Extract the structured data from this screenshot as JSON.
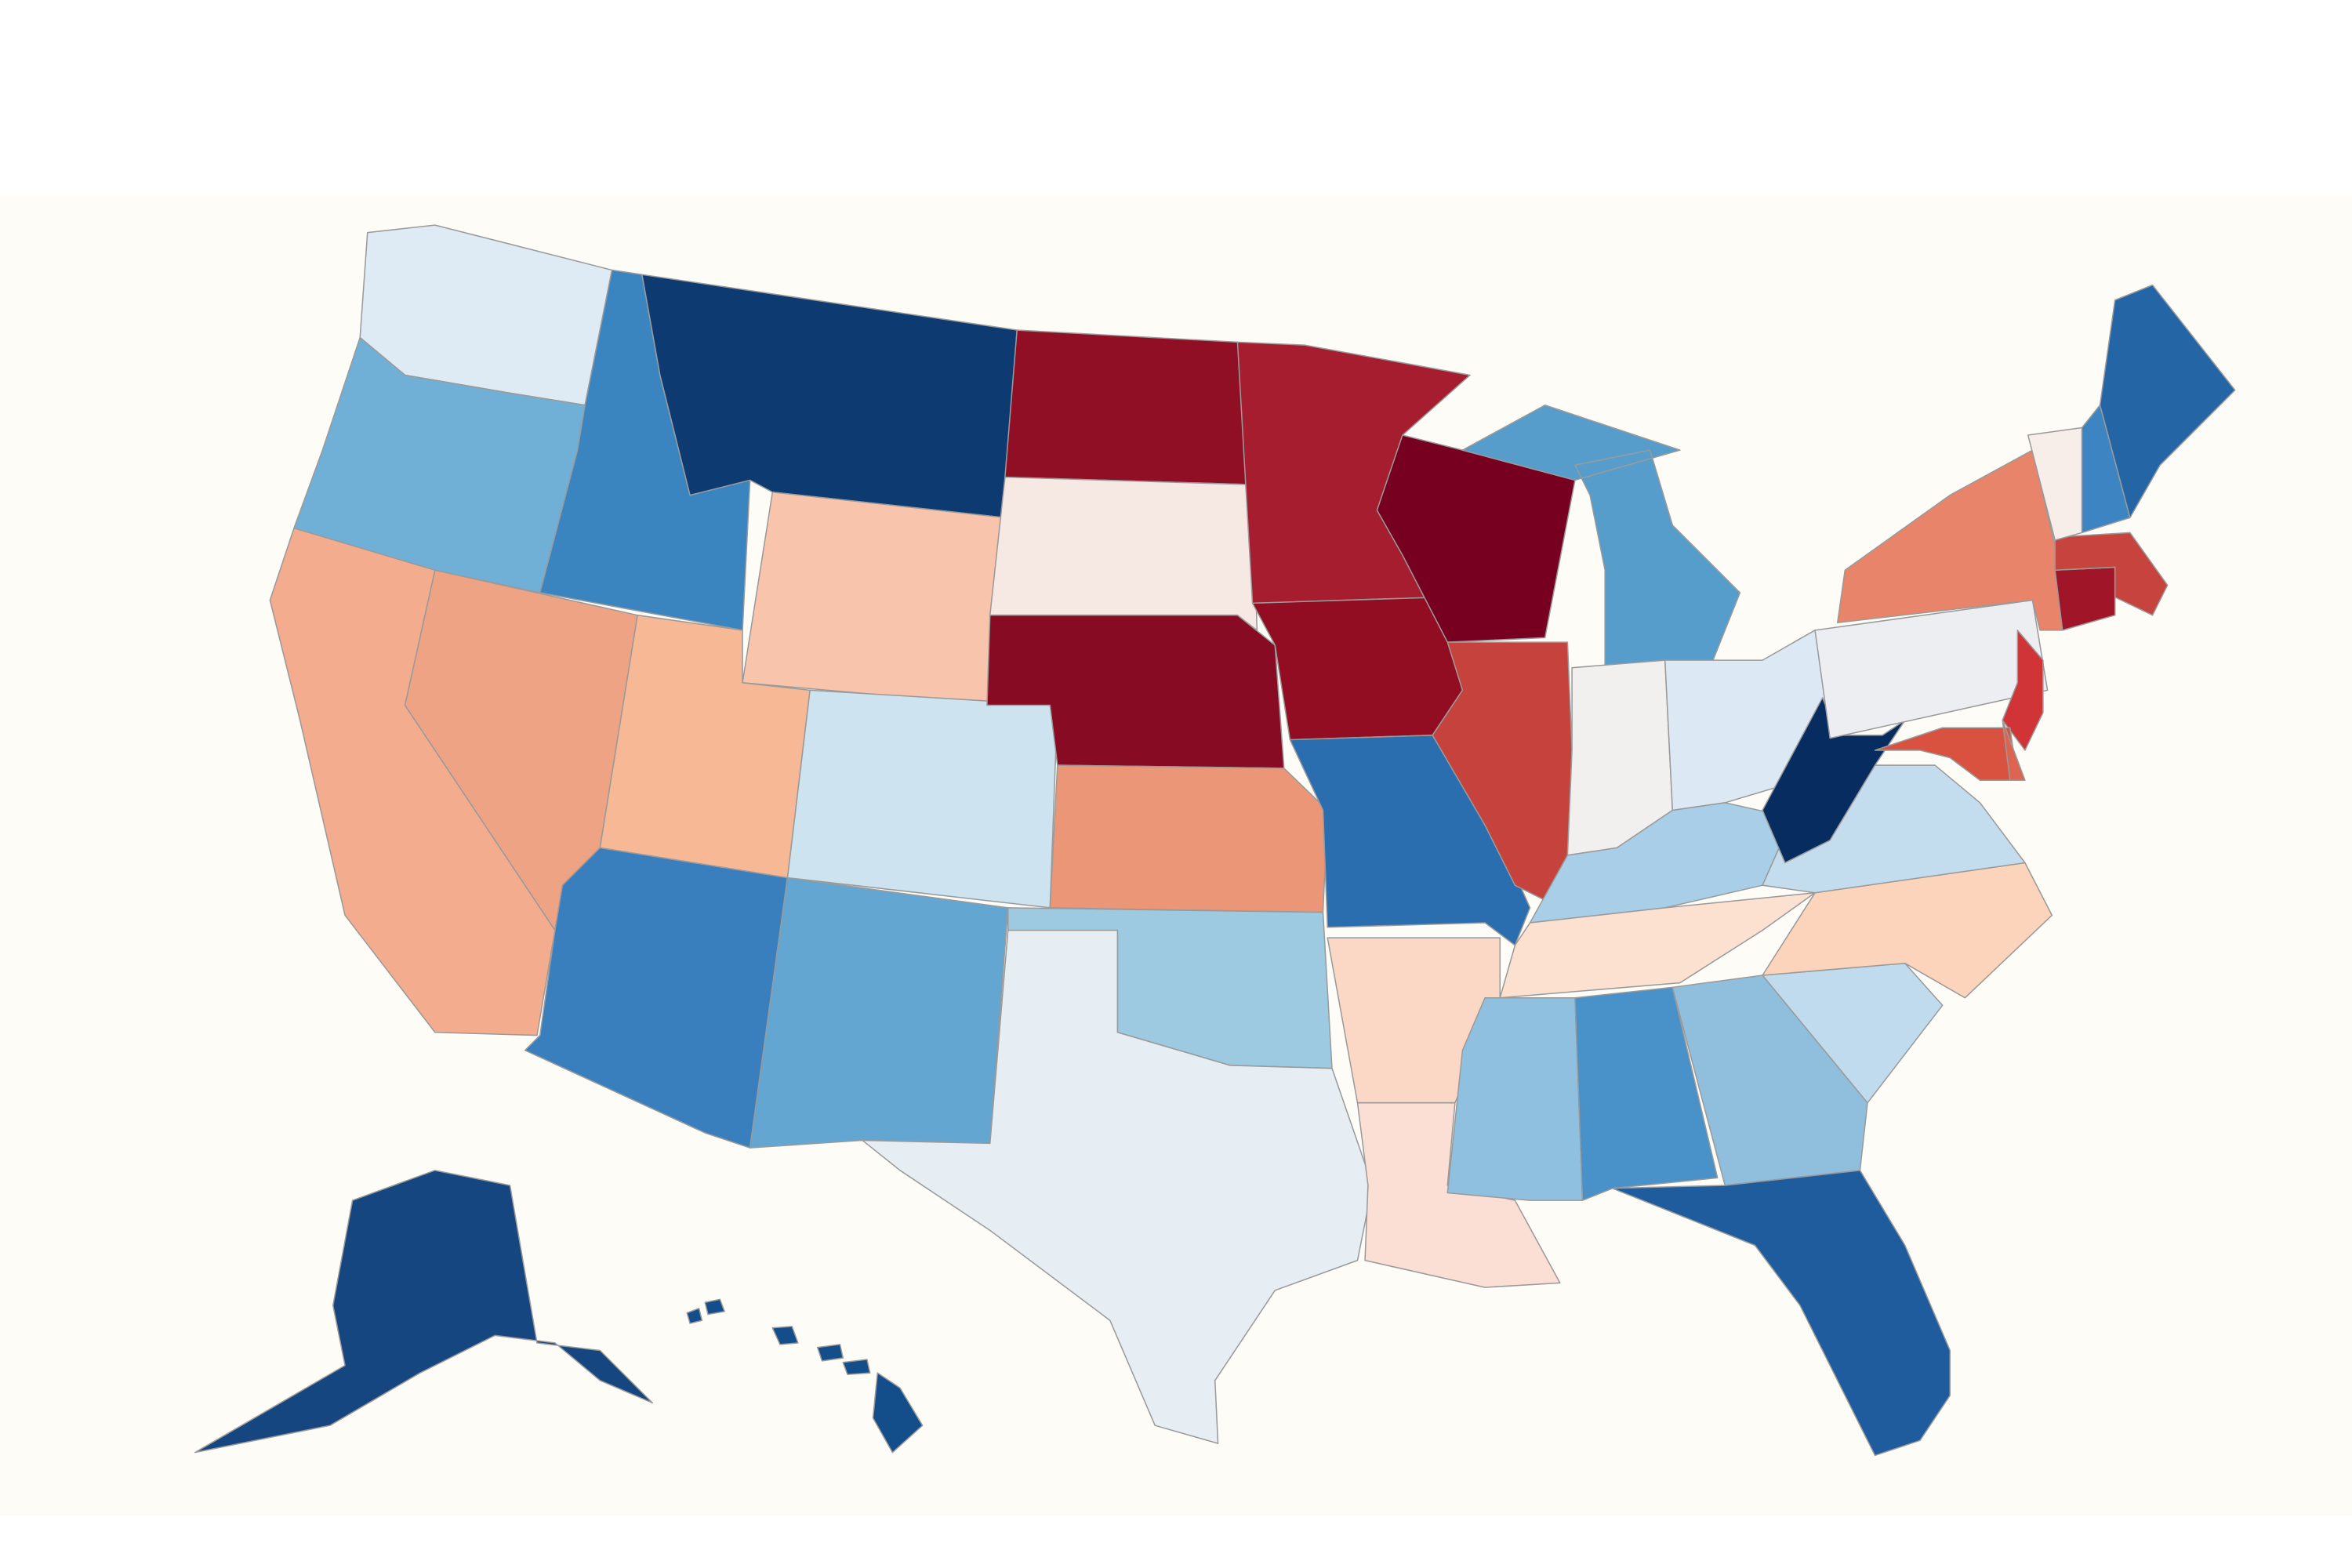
{
  "map": {
    "regions": [
      {
        "color": "#deebf5"
      },
      {
        "color": "#71b0d6"
      },
      {
        "color": "#3a85c0"
      },
      {
        "color": "#0e3a72"
      },
      {
        "color": "#f8c4ab"
      },
      {
        "color": "#f3ad8e"
      },
      {
        "color": "#eea385"
      },
      {
        "color": "#f7b896"
      },
      {
        "color": "#cde3f0"
      },
      {
        "color": "#3a7fbd"
      },
      {
        "color": "#63a6d2"
      },
      {
        "color": "#900f25"
      },
      {
        "color": "#f6e9e4"
      },
      {
        "color": "#870b22"
      },
      {
        "color": "#ea9677"
      },
      {
        "color": "#9dc9e1"
      },
      {
        "color": "#e6eef3"
      },
      {
        "color": "#a51d2e"
      },
      {
        "color": "#920c22"
      },
      {
        "color": "#2a6eb0"
      },
      {
        "color": "#fbd8c6"
      },
      {
        "color": "#fbdfd4"
      },
      {
        "color": "#770020"
      },
      {
        "color": "#c6423d"
      },
      {
        "color": "#569dcb"
      },
      {
        "color": "#f2efef"
      },
      {
        "color": "#dce9f4"
      },
      {
        "color": "#a8cfe7"
      },
      {
        "color": "#fce0d0"
      },
      {
        "color": "#8fc0df"
      },
      {
        "color": "#4891c9"
      },
      {
        "color": "#90bfdd"
      },
      {
        "color": "#1f5c9d"
      },
      {
        "color": "#c1dbee"
      },
      {
        "color": "#fcd3bb"
      },
      {
        "color": "#c3dcee"
      },
      {
        "color": "#062c60"
      },
      {
        "color": "#eceef1"
      },
      {
        "color": "#e8846a"
      },
      {
        "color": "#d03437"
      },
      {
        "color": "#d9513f"
      },
      {
        "color": "#dd6450"
      },
      {
        "color": "#a01628"
      },
      {
        "color": "#c7433e"
      },
      {
        "color": "#f7ede9"
      },
      {
        "color": "#3d85c2"
      },
      {
        "color": "#2465a6"
      },
      {
        "color": "#154680"
      },
      {
        "color": "#134d8a"
      }
    ]
  }
}
